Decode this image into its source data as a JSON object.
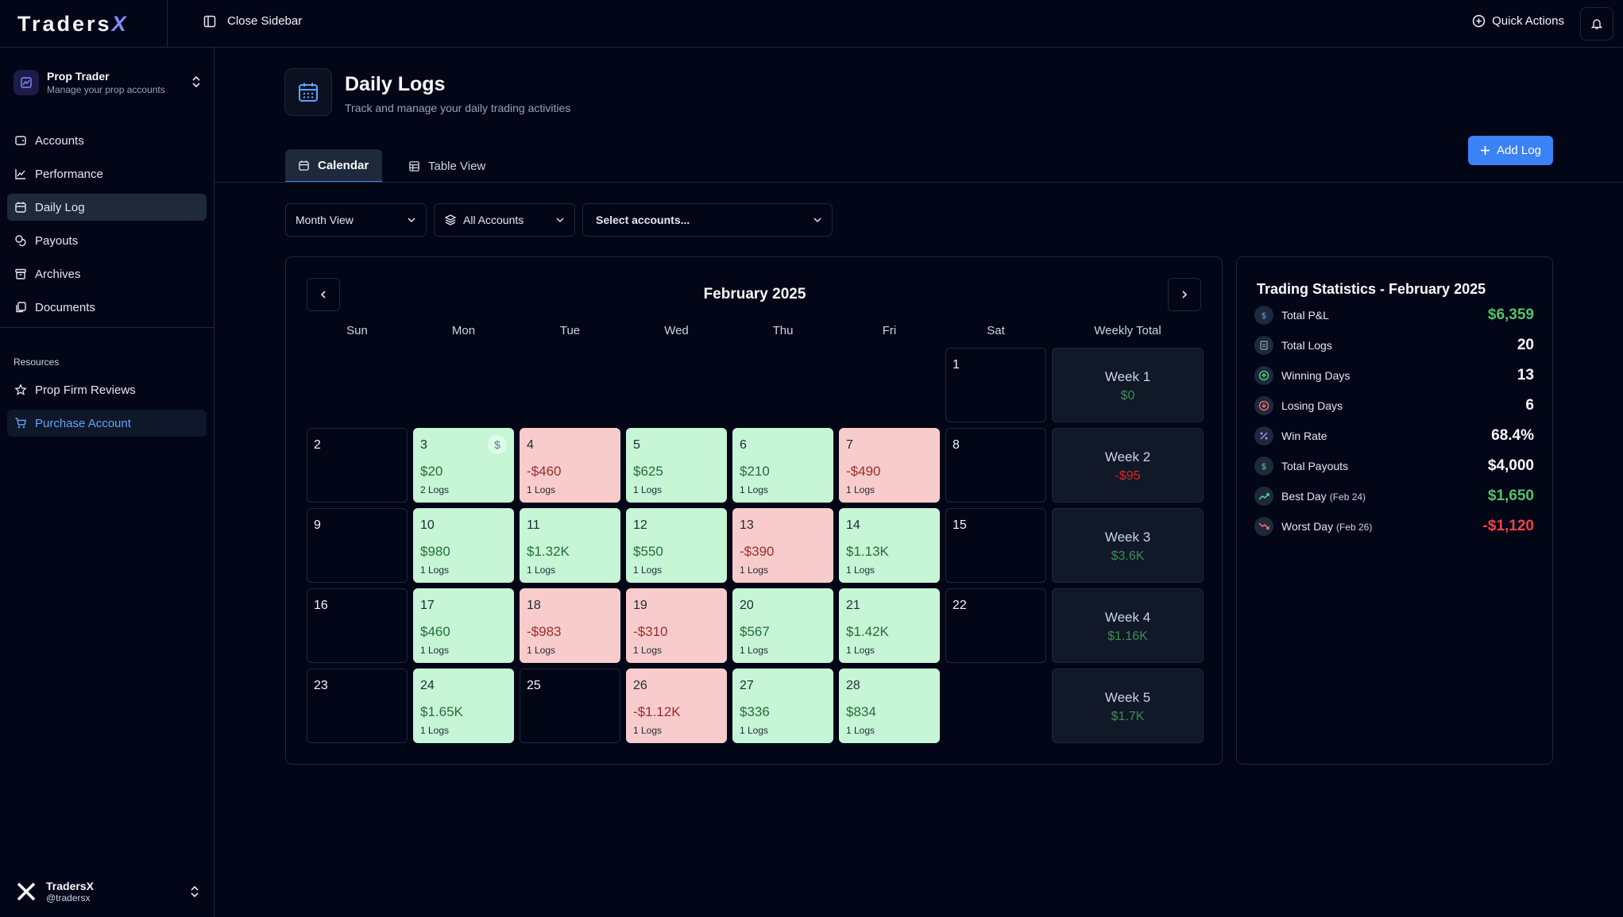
{
  "app": {
    "logo_text": "Traders",
    "logo_x": "X"
  },
  "topbar": {
    "close_sidebar": "Close Sidebar",
    "quick_actions": "Quick Actions"
  },
  "sidebar": {
    "account": {
      "name": "Prop Trader",
      "subtitle": "Manage your prop accounts"
    },
    "items": [
      {
        "label": "Accounts",
        "icon": "wallet-icon"
      },
      {
        "label": "Performance",
        "icon": "chart-line-icon"
      },
      {
        "label": "Daily Log",
        "icon": "calendar-icon"
      },
      {
        "label": "Payouts",
        "icon": "coins-icon"
      },
      {
        "label": "Archives",
        "icon": "archive-icon"
      },
      {
        "label": "Documents",
        "icon": "files-icon"
      }
    ],
    "resources_label": "Resources",
    "resources": [
      {
        "label": "Prop Firm Reviews",
        "icon": "star-icon"
      },
      {
        "label": "Purchase Account",
        "icon": "cart-icon"
      }
    ],
    "user": {
      "name": "TradersX",
      "handle": "@tradersx"
    }
  },
  "page": {
    "title": "Daily Logs",
    "subtitle": "Track and manage your daily trading activities",
    "tabs": [
      "Calendar",
      "Table View"
    ],
    "add_log": "Add Log",
    "filters": {
      "view": "Month View",
      "accounts": "All Accounts",
      "select_accounts": "Select accounts..."
    }
  },
  "calendar": {
    "month": "February 2025",
    "weekdays": [
      "Sun",
      "Mon",
      "Tue",
      "Wed",
      "Thu",
      "Fri",
      "Sat",
      "Weekly Total"
    ],
    "days": [
      {
        "day": "1",
        "col": 6,
        "row": 0
      },
      {
        "day": "2",
        "col": 0,
        "row": 1
      },
      {
        "day": "3",
        "col": 1,
        "row": 1,
        "amount": "$20",
        "logs": "2 Logs",
        "type": "pos",
        "payout": true
      },
      {
        "day": "4",
        "col": 2,
        "row": 1,
        "amount": "-$460",
        "logs": "1 Logs",
        "type": "neg"
      },
      {
        "day": "5",
        "col": 3,
        "row": 1,
        "amount": "$625",
        "logs": "1 Logs",
        "type": "pos"
      },
      {
        "day": "6",
        "col": 4,
        "row": 1,
        "amount": "$210",
        "logs": "1 Logs",
        "type": "pos"
      },
      {
        "day": "7",
        "col": 5,
        "row": 1,
        "amount": "-$490",
        "logs": "1 Logs",
        "type": "neg"
      },
      {
        "day": "8",
        "col": 6,
        "row": 1
      },
      {
        "day": "9",
        "col": 0,
        "row": 2
      },
      {
        "day": "10",
        "col": 1,
        "row": 2,
        "amount": "$980",
        "logs": "1 Logs",
        "type": "pos"
      },
      {
        "day": "11",
        "col": 2,
        "row": 2,
        "amount": "$1.32K",
        "logs": "1 Logs",
        "type": "pos"
      },
      {
        "day": "12",
        "col": 3,
        "row": 2,
        "amount": "$550",
        "logs": "1 Logs",
        "type": "pos"
      },
      {
        "day": "13",
        "col": 4,
        "row": 2,
        "amount": "-$390",
        "logs": "1 Logs",
        "type": "neg"
      },
      {
        "day": "14",
        "col": 5,
        "row": 2,
        "amount": "$1.13K",
        "logs": "1 Logs",
        "type": "pos"
      },
      {
        "day": "15",
        "col": 6,
        "row": 2
      },
      {
        "day": "16",
        "col": 0,
        "row": 3
      },
      {
        "day": "17",
        "col": 1,
        "row": 3,
        "amount": "$460",
        "logs": "1 Logs",
        "type": "pos"
      },
      {
        "day": "18",
        "col": 2,
        "row": 3,
        "amount": "-$983",
        "logs": "1 Logs",
        "type": "neg"
      },
      {
        "day": "19",
        "col": 3,
        "row": 3,
        "amount": "-$310",
        "logs": "1 Logs",
        "type": "neg"
      },
      {
        "day": "20",
        "col": 4,
        "row": 3,
        "amount": "$567",
        "logs": "1 Logs",
        "type": "pos"
      },
      {
        "day": "21",
        "col": 5,
        "row": 3,
        "amount": "$1.42K",
        "logs": "1 Logs",
        "type": "pos"
      },
      {
        "day": "22",
        "col": 6,
        "row": 3
      },
      {
        "day": "23",
        "col": 0,
        "row": 4
      },
      {
        "day": "24",
        "col": 1,
        "row": 4,
        "amount": "$1.65K",
        "logs": "1 Logs",
        "type": "pos"
      },
      {
        "day": "25",
        "col": 2,
        "row": 4
      },
      {
        "day": "26",
        "col": 3,
        "row": 4,
        "amount": "-$1.12K",
        "logs": "1 Logs",
        "type": "neg"
      },
      {
        "day": "27",
        "col": 4,
        "row": 4,
        "amount": "$336",
        "logs": "1 Logs",
        "type": "pos"
      },
      {
        "day": "28",
        "col": 5,
        "row": 4,
        "amount": "$834",
        "logs": "1 Logs",
        "type": "pos"
      }
    ],
    "weeks": [
      {
        "label": "Week 1",
        "total": "$0",
        "type": "zero"
      },
      {
        "label": "Week 2",
        "total": "-$95",
        "type": "neg"
      },
      {
        "label": "Week 3",
        "total": "$3.6K",
        "type": "pos"
      },
      {
        "label": "Week 4",
        "total": "$1.16K",
        "type": "pos"
      },
      {
        "label": "Week 5",
        "total": "$1.7K",
        "type": "pos"
      }
    ]
  },
  "stats": {
    "title": "Trading Statistics - February 2025",
    "rows": [
      {
        "label": "Total P&L",
        "value": "$6,359",
        "tone": "green",
        "icon": "dollar-icon",
        "icon_color": "#60a5fa"
      },
      {
        "label": "Total Logs",
        "value": "20",
        "tone": "",
        "icon": "document-icon",
        "icon_color": "#94a3b8"
      },
      {
        "label": "Winning Days",
        "value": "13",
        "tone": "",
        "icon": "arrow-up-circle-icon",
        "icon_color": "#4ade80"
      },
      {
        "label": "Losing Days",
        "value": "6",
        "tone": "",
        "icon": "arrow-down-circle-icon",
        "icon_color": "#f87171"
      },
      {
        "label": "Win Rate",
        "value": "68.4%",
        "tone": "",
        "icon": "percent-icon",
        "icon_color": "#c084fc"
      },
      {
        "label": "Total Payouts",
        "value": "$4,000",
        "tone": "",
        "icon": "dollar-icon",
        "icon_color": "#4ade80"
      },
      {
        "label": "Best Day",
        "note": "(Feb 24)",
        "value": "$1,650",
        "tone": "green",
        "icon": "trending-up-icon",
        "icon_color": "#4ade80"
      },
      {
        "label": "Worst Day",
        "note": "(Feb 26)",
        "value": "-$1,120",
        "tone": "red",
        "icon": "trending-down-icon",
        "icon_color": "#f87171"
      }
    ]
  }
}
